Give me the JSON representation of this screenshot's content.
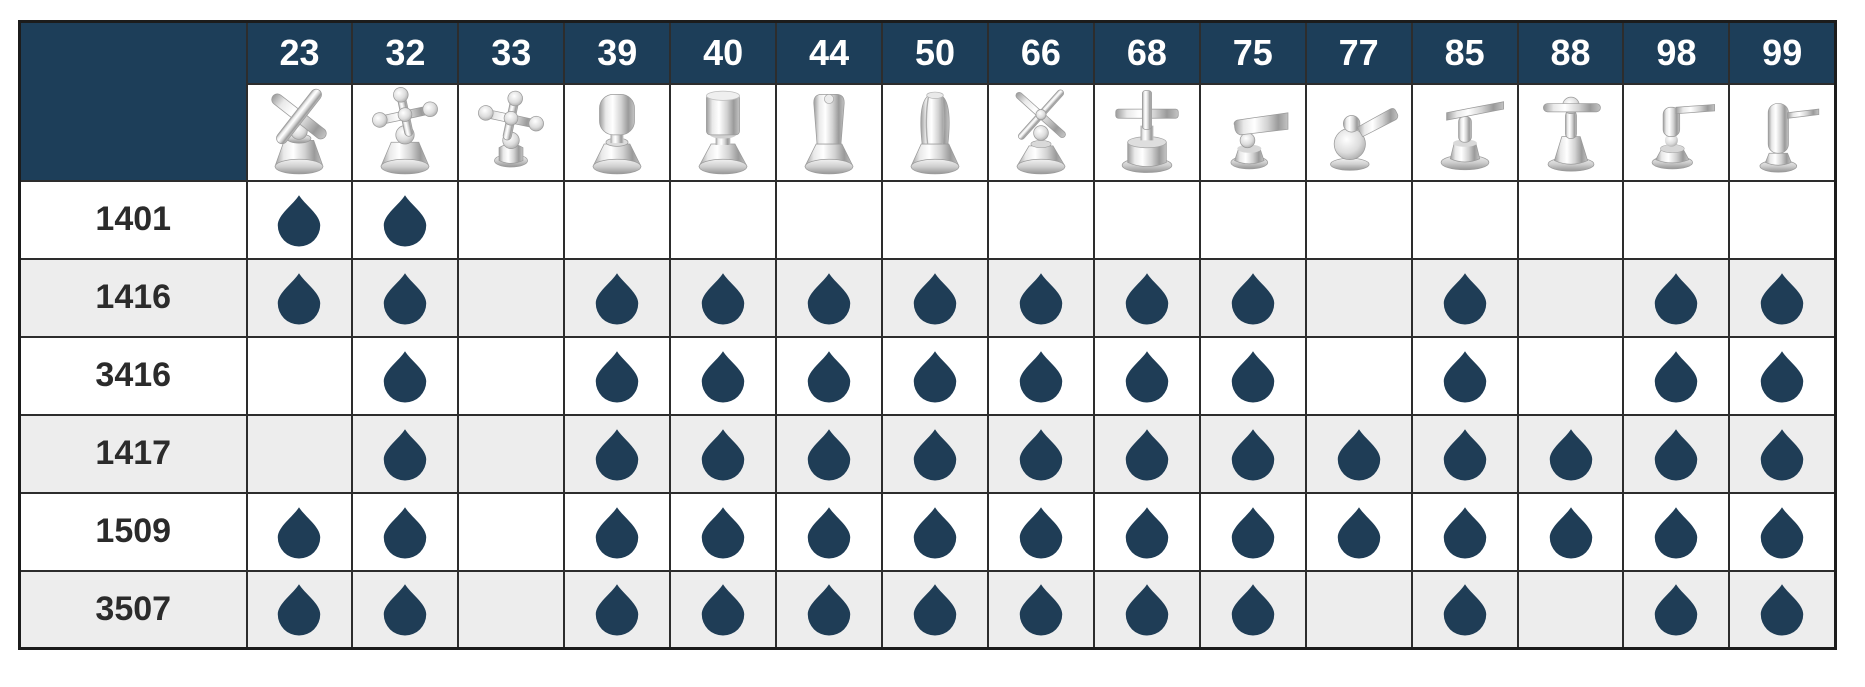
{
  "colors": {
    "header_navy": "#1d3e59",
    "drop_navy": "#1f3d56",
    "row_alt_gray": "#ededed",
    "row_white": "#ffffff",
    "border_dark": "#2d2d2d",
    "header_text": "#ffffff",
    "row_label_text": "#2b2b2b"
  },
  "header": {
    "corner_label": "",
    "columns": [
      {
        "id": "23",
        "handle": "cross-flat"
      },
      {
        "id": "32",
        "handle": "cross-ball"
      },
      {
        "id": "33",
        "handle": "cross-ball-small"
      },
      {
        "id": "39",
        "handle": "knob-round"
      },
      {
        "id": "40",
        "handle": "knob-cylinder"
      },
      {
        "id": "44",
        "handle": "knob-square"
      },
      {
        "id": "50",
        "handle": "knob-fluted"
      },
      {
        "id": "66",
        "handle": "cross-thin"
      },
      {
        "id": "68",
        "handle": "cross-modern"
      },
      {
        "id": "75",
        "handle": "lever-short"
      },
      {
        "id": "77",
        "handle": "lever-ball"
      },
      {
        "id": "85",
        "handle": "lever-bar"
      },
      {
        "id": "88",
        "handle": "lever-tbar"
      },
      {
        "id": "98",
        "handle": "lever-cylinder"
      },
      {
        "id": "99",
        "handle": "lever-pin"
      }
    ]
  },
  "icons": {
    "compatibility_marker": "water-drop-icon"
  },
  "chart_data": {
    "type": "table",
    "title": "",
    "description": "Compatibility matrix: model rows vs handle-style columns; a water drop marks a compatible combination",
    "column_headers": [
      "23",
      "32",
      "33",
      "39",
      "40",
      "44",
      "50",
      "66",
      "68",
      "75",
      "77",
      "85",
      "88",
      "98",
      "99"
    ],
    "row_headers": [
      "1401",
      "1416",
      "3416",
      "1417",
      "1509",
      "3507"
    ],
    "matrix": [
      [
        1,
        1,
        0,
        0,
        0,
        0,
        0,
        0,
        0,
        0,
        0,
        0,
        0,
        0,
        0
      ],
      [
        1,
        1,
        0,
        1,
        1,
        1,
        1,
        1,
        1,
        1,
        0,
        1,
        0,
        1,
        1
      ],
      [
        0,
        1,
        0,
        1,
        1,
        1,
        1,
        1,
        1,
        1,
        0,
        1,
        0,
        1,
        1
      ],
      [
        0,
        1,
        0,
        1,
        1,
        1,
        1,
        1,
        1,
        1,
        1,
        1,
        1,
        1,
        1
      ],
      [
        1,
        1,
        0,
        1,
        1,
        1,
        1,
        1,
        1,
        1,
        1,
        1,
        1,
        1,
        1
      ],
      [
        1,
        1,
        0,
        1,
        1,
        1,
        1,
        1,
        1,
        1,
        0,
        1,
        0,
        1,
        1
      ]
    ],
    "legend": "water-drop = compatible",
    "grid": true
  }
}
